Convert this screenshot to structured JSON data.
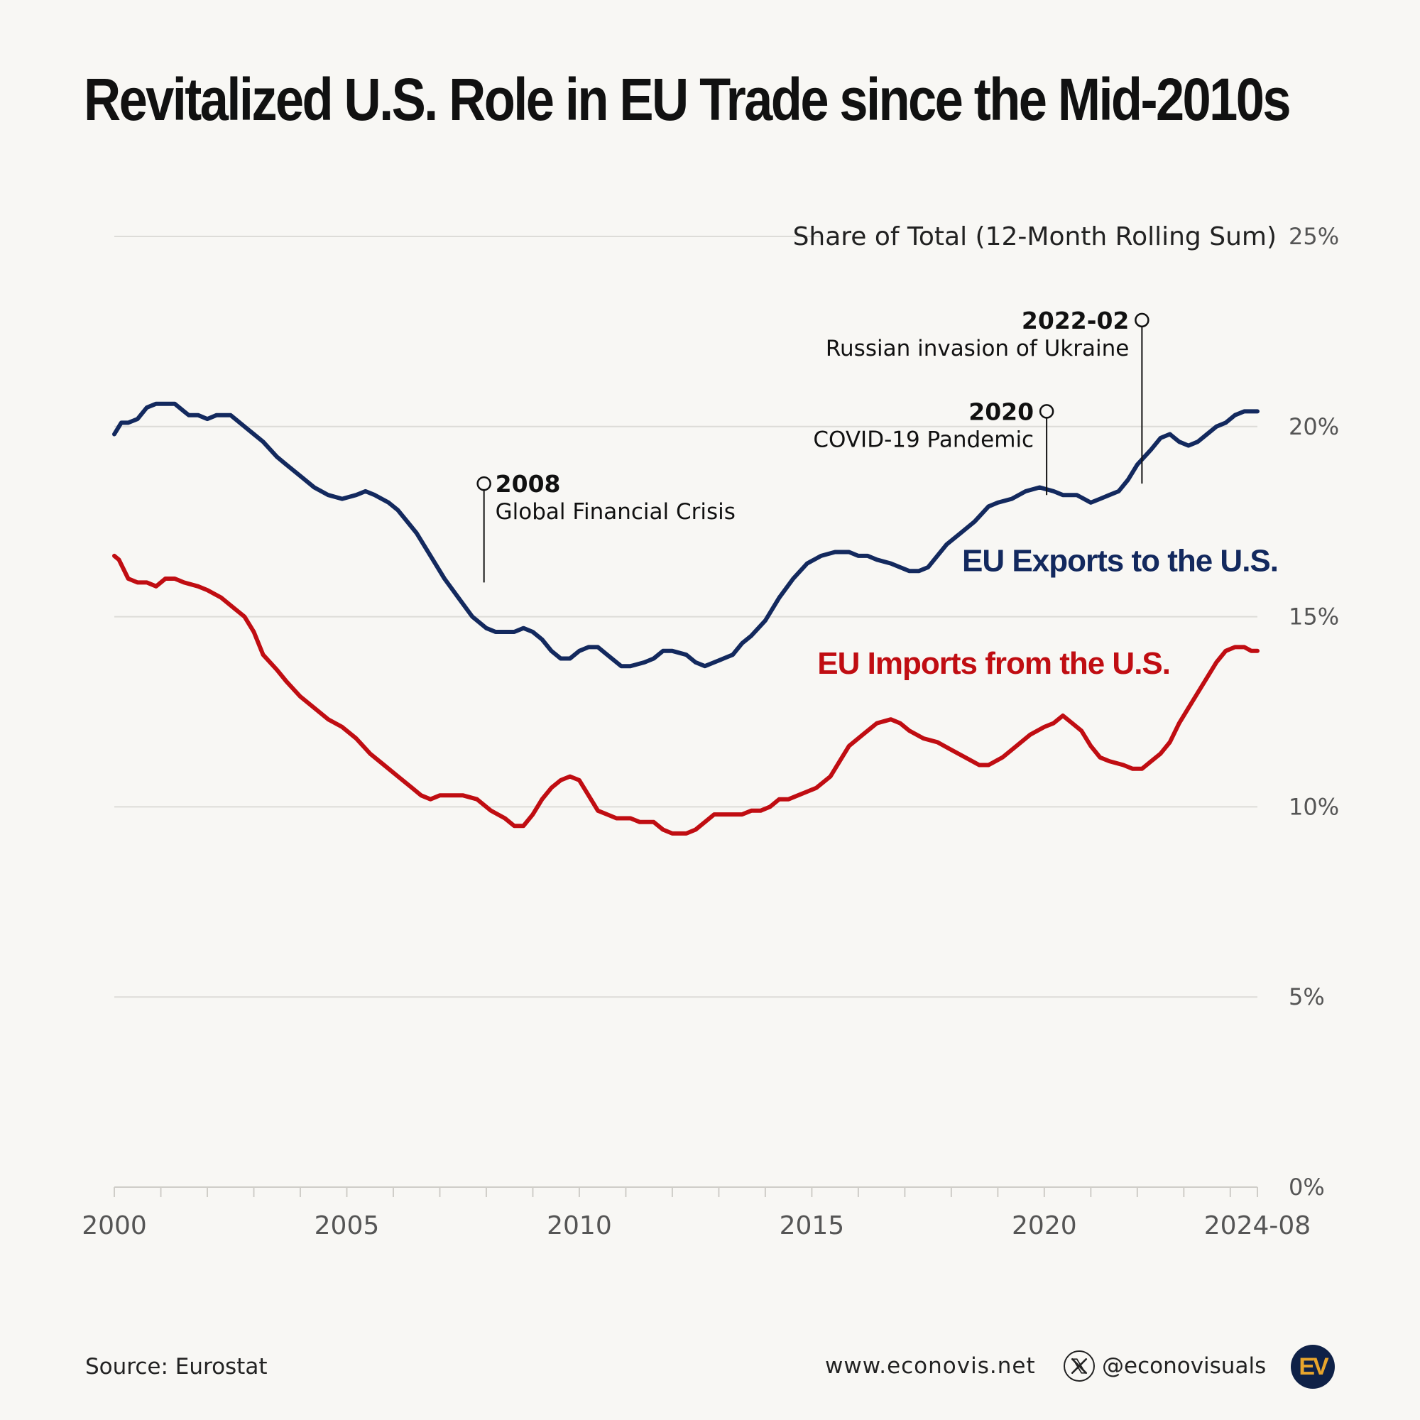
{
  "title": "Revitalized U.S. Role in EU Trade since the Mid-2010s",
  "footer": {
    "source": "Source: Eurostat",
    "website": "www.econovis.net",
    "handle": "@econovisuals",
    "logo_text": "EV"
  },
  "icons": {
    "x": "x-logo-icon",
    "brand": "econovis-logo"
  },
  "colors": {
    "exports": "#13295e",
    "imports": "#c00d12",
    "grid": "#dddcd8",
    "axis_text": "#555555"
  },
  "chart_data": {
    "type": "line",
    "title": "Revitalized U.S. Role in EU Trade since the Mid-2010s",
    "ylabel": "Share of Total (12-Month Rolling Sum)",
    "xlabel": "",
    "xlim": [
      2000.0,
      2024.583
    ],
    "ylim": [
      0,
      25
    ],
    "y_ticks": [
      0,
      5,
      10,
      15,
      20,
      25
    ],
    "y_tick_labels": [
      "0%",
      "5%",
      "10%",
      "15%",
      "20%",
      "25%"
    ],
    "x_ticks": [
      2000,
      2005,
      2010,
      2015,
      2020,
      2024.583
    ],
    "x_tick_labels": [
      "2000",
      "2005",
      "2010",
      "2015",
      "2020",
      "2024-08"
    ],
    "x_minor_ticks": [
      2001,
      2002,
      2003,
      2004,
      2006,
      2007,
      2008,
      2009,
      2011,
      2012,
      2013,
      2014,
      2016,
      2017,
      2018,
      2019,
      2021,
      2022,
      2023,
      2024
    ],
    "grid": true,
    "series": [
      {
        "name": "EU Exports to the U.S.",
        "x": [
          2000.0,
          2000.15,
          2000.3,
          2000.5,
          2000.7,
          2000.9,
          2001.1,
          2001.3,
          2001.5,
          2001.6,
          2001.8,
          2002.0,
          2002.2,
          2002.5,
          2002.6,
          2002.8,
          2003.0,
          2003.2,
          2003.5,
          2003.7,
          2004.0,
          2004.3,
          2004.6,
          2004.9,
          2005.2,
          2005.4,
          2005.6,
          2005.9,
          2006.1,
          2006.3,
          2006.5,
          2006.7,
          2006.9,
          2007.1,
          2007.4,
          2007.7,
          2008.0,
          2008.2,
          2008.4,
          2008.6,
          2008.8,
          2009.0,
          2009.2,
          2009.4,
          2009.6,
          2009.8,
          2010.0,
          2010.2,
          2010.4,
          2010.6,
          2010.9,
          2011.1,
          2011.4,
          2011.6,
          2011.8,
          2012.0,
          2012.3,
          2012.5,
          2012.7,
          2012.9,
          2013.1,
          2013.3,
          2013.5,
          2013.7,
          2014.0,
          2014.3,
          2014.6,
          2014.9,
          2015.2,
          2015.5,
          2015.8,
          2016.0,
          2016.2,
          2016.4,
          2016.7,
          2016.9,
          2017.1,
          2017.3,
          2017.5,
          2017.7,
          2017.9,
          2018.2,
          2018.5,
          2018.8,
          2019.0,
          2019.3,
          2019.6,
          2019.9,
          2020.2,
          2020.4,
          2020.7,
          2021.0,
          2021.2,
          2021.4,
          2021.6,
          2021.8,
          2022.0,
          2022.15,
          2022.3,
          2022.5,
          2022.7,
          2022.9,
          2023.1,
          2023.3,
          2023.5,
          2023.7,
          2023.9,
          2024.1,
          2024.3,
          2024.5,
          2024.583
        ],
        "values": [
          19.8,
          20.1,
          20.1,
          20.2,
          20.5,
          20.6,
          20.6,
          20.6,
          20.4,
          20.3,
          20.3,
          20.2,
          20.3,
          20.3,
          20.2,
          20.0,
          19.8,
          19.6,
          19.2,
          19.0,
          18.7,
          18.4,
          18.2,
          18.1,
          18.2,
          18.3,
          18.2,
          18.0,
          17.8,
          17.5,
          17.2,
          16.8,
          16.4,
          16.0,
          15.5,
          15.0,
          14.7,
          14.6,
          14.6,
          14.6,
          14.7,
          14.6,
          14.4,
          14.1,
          13.9,
          13.9,
          14.1,
          14.2,
          14.2,
          14.0,
          13.7,
          13.7,
          13.8,
          13.9,
          14.1,
          14.1,
          14.0,
          13.8,
          13.7,
          13.8,
          13.9,
          14.0,
          14.3,
          14.5,
          14.9,
          15.5,
          16.0,
          16.4,
          16.6,
          16.7,
          16.7,
          16.6,
          16.6,
          16.5,
          16.4,
          16.3,
          16.2,
          16.2,
          16.3,
          16.6,
          16.9,
          17.2,
          17.5,
          17.9,
          18.0,
          18.1,
          18.3,
          18.4,
          18.3,
          18.2,
          18.2,
          18.0,
          18.1,
          18.2,
          18.3,
          18.6,
          19.0,
          19.2,
          19.4,
          19.7,
          19.8,
          19.6,
          19.5,
          19.6,
          19.8,
          20.0,
          20.1,
          20.3,
          20.4,
          20.4,
          20.4
        ],
        "label": "EU Exports to the U.S."
      },
      {
        "name": "EU Imports from the U.S.",
        "x": [
          2000.0,
          2000.1,
          2000.3,
          2000.5,
          2000.7,
          2000.9,
          2001.1,
          2001.3,
          2001.5,
          2001.8,
          2002.0,
          2002.3,
          2002.6,
          2002.8,
          2003.0,
          2003.2,
          2003.5,
          2003.7,
          2004.0,
          2004.3,
          2004.6,
          2004.9,
          2005.2,
          2005.5,
          2005.8,
          2006.1,
          2006.4,
          2006.6,
          2006.8,
          2007.0,
          2007.3,
          2007.5,
          2007.8,
          2008.1,
          2008.4,
          2008.6,
          2008.8,
          2009.0,
          2009.2,
          2009.4,
          2009.6,
          2009.8,
          2010.0,
          2010.2,
          2010.4,
          2010.6,
          2010.8,
          2011.1,
          2011.3,
          2011.6,
          2011.8,
          2012.0,
          2012.3,
          2012.5,
          2012.7,
          2012.9,
          2013.1,
          2013.3,
          2013.5,
          2013.7,
          2013.9,
          2014.1,
          2014.3,
          2014.5,
          2014.7,
          2014.9,
          2015.1,
          2015.4,
          2015.6,
          2015.8,
          2016.1,
          2016.4,
          2016.7,
          2016.9,
          2017.1,
          2017.4,
          2017.7,
          2018.0,
          2018.3,
          2018.6,
          2018.8,
          2019.1,
          2019.4,
          2019.7,
          2020.0,
          2020.2,
          2020.4,
          2020.6,
          2020.8,
          2021.0,
          2021.2,
          2021.4,
          2021.7,
          2021.9,
          2022.1,
          2022.3,
          2022.5,
          2022.7,
          2022.9,
          2023.1,
          2023.3,
          2023.5,
          2023.7,
          2023.9,
          2024.1,
          2024.3,
          2024.45,
          2024.583
        ],
        "values": [
          16.6,
          16.5,
          16.0,
          15.9,
          15.9,
          15.8,
          16.0,
          16.0,
          15.9,
          15.8,
          15.7,
          15.5,
          15.2,
          15.0,
          14.6,
          14.0,
          13.6,
          13.3,
          12.9,
          12.6,
          12.3,
          12.1,
          11.8,
          11.4,
          11.1,
          10.8,
          10.5,
          10.3,
          10.2,
          10.3,
          10.3,
          10.3,
          10.2,
          9.9,
          9.7,
          9.5,
          9.5,
          9.8,
          10.2,
          10.5,
          10.7,
          10.8,
          10.7,
          10.3,
          9.9,
          9.8,
          9.7,
          9.7,
          9.6,
          9.6,
          9.4,
          9.3,
          9.3,
          9.4,
          9.6,
          9.8,
          9.8,
          9.8,
          9.8,
          9.9,
          9.9,
          10.0,
          10.2,
          10.2,
          10.3,
          10.4,
          10.5,
          10.8,
          11.2,
          11.6,
          11.9,
          12.2,
          12.3,
          12.2,
          12.0,
          11.8,
          11.7,
          11.5,
          11.3,
          11.1,
          11.1,
          11.3,
          11.6,
          11.9,
          12.1,
          12.2,
          12.4,
          12.2,
          12.0,
          11.6,
          11.3,
          11.2,
          11.1,
          11.0,
          11.0,
          11.2,
          11.4,
          11.7,
          12.2,
          12.6,
          13.0,
          13.4,
          13.8,
          14.1,
          14.2,
          14.2,
          14.1,
          14.1
        ],
        "label": "EU Imports from the U.S."
      }
    ],
    "annotations": [
      {
        "year": "2008",
        "text": "Global Financial Crisis",
        "x": 2007.95,
        "y": 15.9
      },
      {
        "year": "2020",
        "text": "COVID-19 Pandemic",
        "x": 2020.05,
        "y": 18.2
      },
      {
        "year": "2022-02",
        "text": "Russian invasion of Ukraine",
        "x": 2022.1,
        "y": 18.5
      }
    ]
  }
}
